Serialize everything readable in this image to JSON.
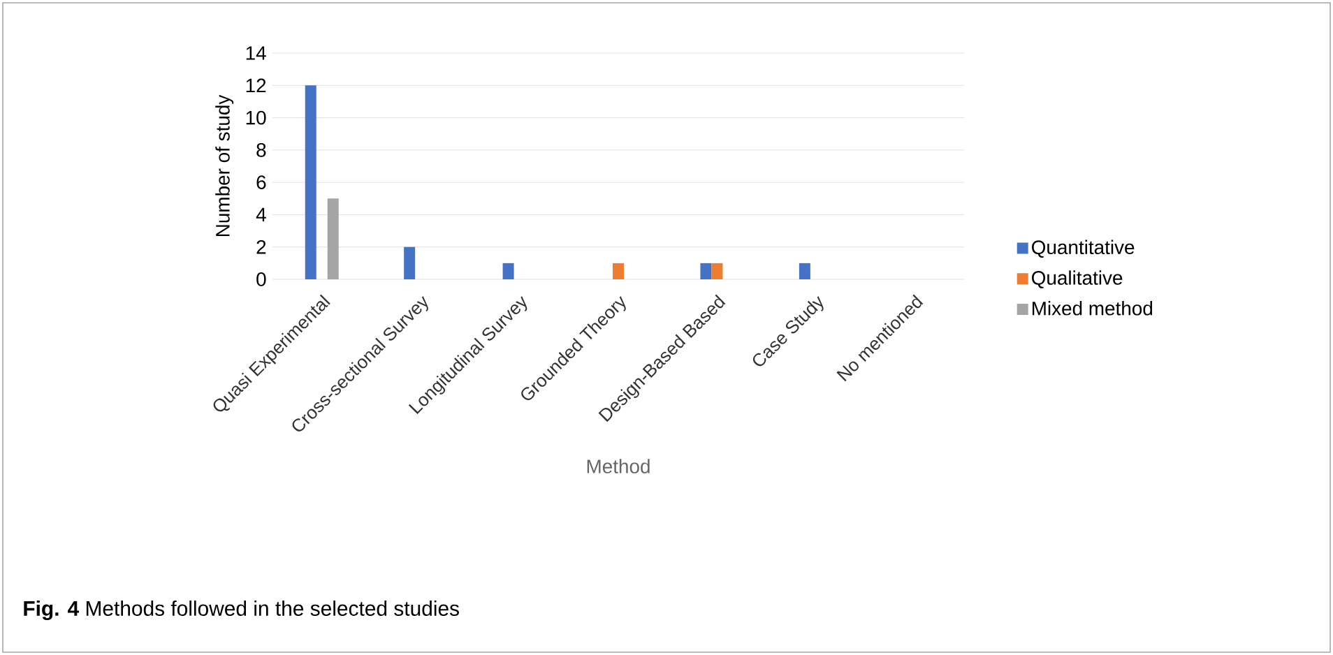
{
  "chart_data": {
    "type": "bar",
    "xlabel": "Method",
    "ylabel": "Number of study",
    "categories": [
      "Quasi Experimental",
      "Cross-sectional Survey",
      "Longitudinal Survey",
      "Grounded Theory",
      "Design-Based Based",
      "Case Study",
      "No mentioned"
    ],
    "series": [
      {
        "name": "Quantitative",
        "color": "#4472c4",
        "values": [
          12,
          2,
          1,
          0,
          1,
          1,
          0
        ]
      },
      {
        "name": "Qualitative",
        "color": "#ed7d31",
        "values": [
          0,
          0,
          0,
          1,
          1,
          0,
          0
        ]
      },
      {
        "name": "Mixed method",
        "color": "#a5a5a5",
        "values": [
          5,
          0,
          0,
          0,
          0,
          0,
          0
        ]
      }
    ],
    "ylim": [
      0,
      14
    ],
    "yticks": [
      0,
      2,
      4,
      6,
      8,
      10,
      12,
      14
    ],
    "grid": "y",
    "legend": "right",
    "annotations": [
      "**Fig. 4** Methods followed in the selected studies"
    ]
  }
}
